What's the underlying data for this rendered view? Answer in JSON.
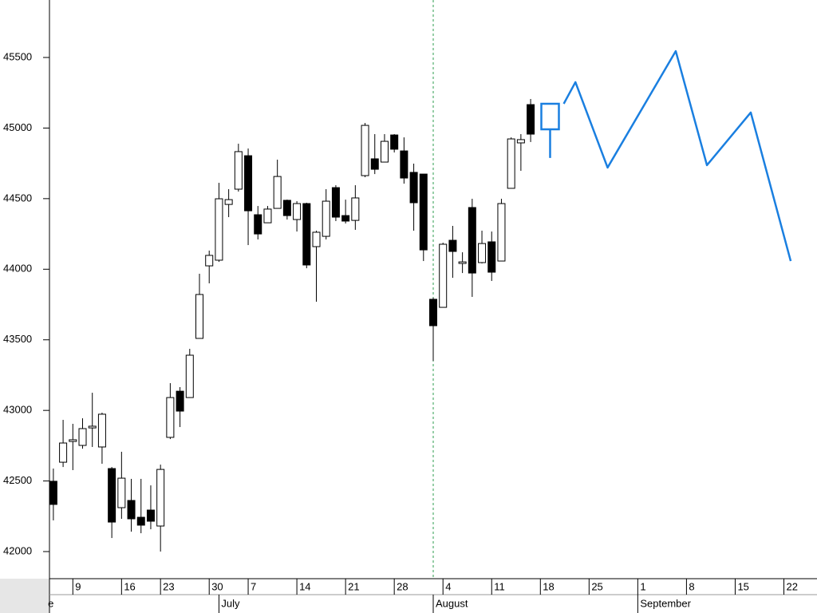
{
  "chart_data": {
    "type": "candlestick",
    "up_color": "#ffffff",
    "down_color": "#000000",
    "candles": {
      "x": [
        0,
        1,
        2,
        3,
        4,
        5,
        6,
        7,
        8,
        9,
        10,
        11,
        12,
        13,
        14,
        15,
        16,
        17,
        18,
        19,
        20,
        21,
        22,
        23,
        24,
        25,
        26,
        27,
        28,
        29,
        30,
        31,
        32,
        33,
        34,
        35,
        36,
        37,
        38,
        39,
        40,
        41,
        42,
        43,
        44,
        45,
        46,
        47,
        48,
        49
      ],
      "open": [
        42498,
        42633,
        42780,
        42752,
        42876,
        42741,
        42588,
        42311,
        42362,
        42243,
        42294,
        42181,
        42809,
        43136,
        43091,
        43510,
        44024,
        44064,
        44459,
        44567,
        44804,
        44386,
        44329,
        44431,
        44488,
        44352,
        44465,
        44160,
        44233,
        44578,
        44380,
        44346,
        44663,
        44782,
        44759,
        44951,
        44838,
        44686,
        44674,
        43787,
        43730,
        44205,
        44041,
        44437,
        44047,
        44194,
        44058,
        44573,
        44895,
        45166
      ],
      "high": [
        42588,
        42933,
        42905,
        42944,
        43125,
        42984,
        42599,
        42707,
        42515,
        42515,
        42469,
        42616,
        43193,
        43165,
        43436,
        43968,
        44132,
        44612,
        44567,
        44889,
        44855,
        44448,
        44448,
        44776,
        44493,
        44482,
        44471,
        44273,
        44567,
        44595,
        44493,
        44595,
        45036,
        44957,
        44957,
        44957,
        44934,
        44748,
        44674,
        43798,
        44188,
        44307,
        44120,
        44499,
        44273,
        44267,
        44499,
        44934,
        44957,
        45206
      ],
      "low": [
        42221,
        42599,
        42577,
        42729,
        42741,
        42622,
        42096,
        42232,
        42141,
        42130,
        42158,
        42000,
        42797,
        42882,
        43091,
        43510,
        43900,
        44052,
        44369,
        44550,
        44171,
        44211,
        44329,
        44431,
        44352,
        44267,
        44007,
        43770,
        44211,
        44341,
        44324,
        44279,
        44652,
        44674,
        44759,
        44827,
        44606,
        44273,
        44058,
        43351,
        43730,
        43939,
        43973,
        43804,
        44041,
        43917,
        44058,
        44573,
        44697,
        44901
      ],
      "close": [
        42334,
        42769,
        42792,
        42871,
        42888,
        42973,
        42209,
        42520,
        42232,
        42187,
        42215,
        42582,
        43091,
        42995,
        43391,
        43821,
        44098,
        44499,
        44493,
        44833,
        44414,
        44250,
        44426,
        44657,
        44380,
        44465,
        44030,
        44262,
        44482,
        44369,
        44341,
        44505,
        45019,
        44708,
        44906,
        44850,
        44646,
        44471,
        44137,
        43600,
        44177,
        44126,
        44052,
        43973,
        44182,
        43979,
        44465,
        44923,
        44918,
        44957
      ]
    },
    "forecast": {
      "color": "#1a7fe0",
      "candle": {
        "x": 51,
        "open": 44991,
        "high": 45172,
        "low": 44788,
        "close": 45172
      },
      "line": {
        "x": [
          52.4,
          53.6,
          56.9,
          63.9,
          67.1,
          71.6,
          75.7
        ],
        "values": [
          45172,
          45325,
          44720,
          45545,
          44737,
          45110,
          44058
        ]
      }
    },
    "marker_x": 39,
    "marker_color": "#2e9e4f",
    "xlim": [
      -0.4,
      78.4
    ],
    "ylim": [
      41808,
      45907
    ],
    "yticks": [
      42000,
      42500,
      43000,
      43500,
      44000,
      44500,
      45000,
      45500
    ],
    "xticks": [
      {
        "value": 2,
        "label": "9"
      },
      {
        "value": 7,
        "label": "16"
      },
      {
        "value": 11,
        "label": "23"
      },
      {
        "value": 16,
        "label": "30"
      },
      {
        "value": 20,
        "label": "7"
      },
      {
        "value": 25,
        "label": "14"
      },
      {
        "value": 30,
        "label": "21"
      },
      {
        "value": 35,
        "label": "28"
      },
      {
        "value": 40,
        "label": "4"
      },
      {
        "value": 45,
        "label": "11"
      },
      {
        "value": 50,
        "label": "18"
      },
      {
        "value": 55,
        "label": "25"
      },
      {
        "value": 60,
        "label": "1"
      },
      {
        "value": 65,
        "label": "8"
      },
      {
        "value": 70,
        "label": "15"
      },
      {
        "value": 75,
        "label": "22"
      }
    ],
    "month_ticks": [
      {
        "value": -0.8,
        "label": "e"
      },
      {
        "value": 17,
        "label": "July"
      },
      {
        "value": 39,
        "label": "August"
      },
      {
        "value": 60,
        "label": "September"
      }
    ]
  }
}
